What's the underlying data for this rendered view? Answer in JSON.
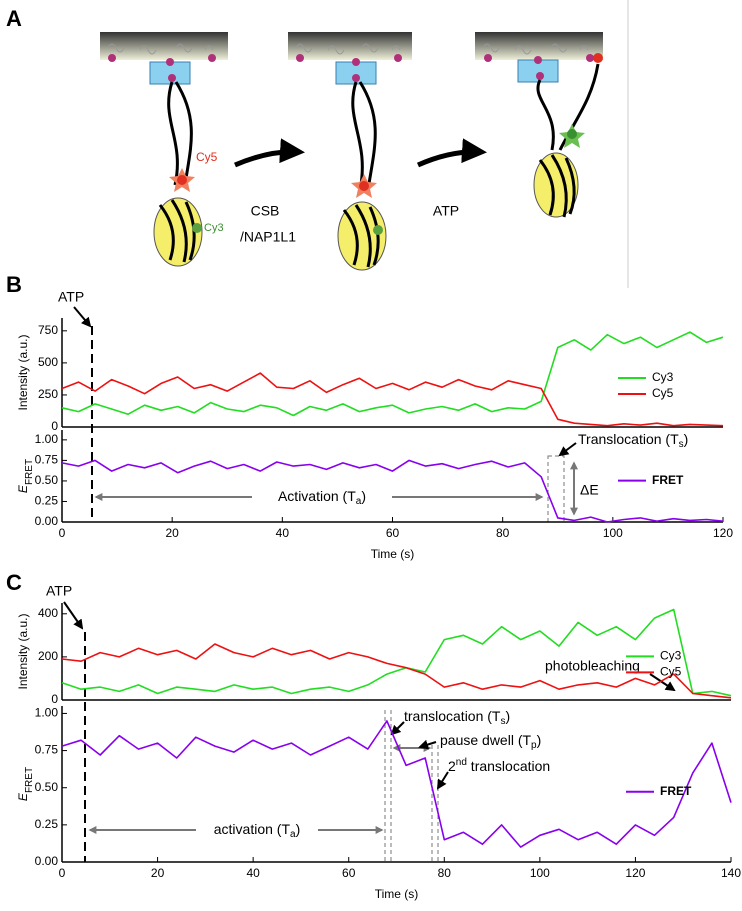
{
  "panel_labels": [
    "A",
    "B",
    "C"
  ],
  "panel_a": {
    "cy5": "Cy5",
    "cy3": "Cy3",
    "step1": [
      "CSB",
      "/NAP1L1"
    ],
    "step2": "ATP"
  },
  "annotations_b": {
    "atp": "ATP",
    "translocation": [
      "Translocation (T",
      "s",
      ")"
    ],
    "activation": [
      "Activation (T",
      "a",
      ")"
    ],
    "delta_e": "ΔE"
  },
  "annotations_c": {
    "atp": "ATP",
    "photobleaching": "photobleaching",
    "translocation": [
      "translocation (T",
      "s",
      ")"
    ],
    "pause": [
      "pause dwell (T",
      "p",
      ")"
    ],
    "second": [
      "2",
      "nd",
      " translocation"
    ],
    "activation": [
      "activation (T",
      "a",
      ")"
    ]
  },
  "chart_data": [
    {
      "type": "line",
      "ylabel": "Intensity (a.u.)",
      "legend": "right",
      "x": [
        0,
        3,
        6,
        9,
        12,
        15,
        18,
        21,
        24,
        27,
        30,
        33,
        36,
        39,
        42,
        45,
        48,
        51,
        54,
        57,
        60,
        63,
        66,
        69,
        72,
        75,
        78,
        81,
        84,
        87,
        90,
        93,
        96,
        99,
        102,
        105,
        108,
        111,
        114,
        117,
        120
      ],
      "xlim": [
        0,
        120
      ],
      "ylim": [
        0,
        850
      ],
      "yticks": [
        0,
        250,
        500,
        750
      ],
      "series": [
        {
          "name": "Cy3",
          "color": "#22dd22",
          "values": [
            150,
            120,
            180,
            140,
            100,
            170,
            130,
            160,
            110,
            190,
            140,
            120,
            170,
            150,
            90,
            160,
            130,
            180,
            120,
            150,
            170,
            110,
            140,
            160,
            130,
            180,
            120,
            150,
            140,
            200,
            620,
            680,
            600,
            720,
            650,
            700,
            620,
            680,
            740,
            660,
            700
          ]
        },
        {
          "name": "Cy5",
          "color": "#ee1111",
          "values": [
            300,
            350,
            280,
            370,
            320,
            260,
            340,
            390,
            300,
            330,
            280,
            350,
            420,
            310,
            300,
            360,
            270,
            330,
            380,
            300,
            340,
            290,
            350,
            310,
            370,
            320,
            290,
            360,
            330,
            300,
            60,
            30,
            20,
            10,
            25,
            15,
            30,
            10,
            20,
            15,
            10
          ]
        }
      ]
    },
    {
      "type": "line",
      "ylabel": [
        "E",
        "FRET"
      ],
      "xlabel": "Time (s)",
      "legend": "right",
      "x": [
        0,
        3,
        6,
        9,
        12,
        15,
        18,
        21,
        24,
        27,
        30,
        33,
        36,
        39,
        42,
        45,
        48,
        51,
        54,
        57,
        60,
        63,
        66,
        69,
        72,
        75,
        78,
        81,
        84,
        87,
        90,
        93,
        96,
        99,
        102,
        105,
        108,
        111,
        114,
        117,
        120
      ],
      "xlim": [
        0,
        120
      ],
      "xticks": [
        0,
        20,
        40,
        60,
        80,
        100,
        120
      ],
      "ylim": [
        0,
        1.12
      ],
      "yticks": [
        {
          "value": 0,
          "label": "0.00"
        },
        {
          "value": 0.25,
          "label": "0.25"
        },
        {
          "value": 0.5,
          "label": "0.50"
        },
        {
          "value": 0.75,
          "label": "0.75"
        },
        {
          "value": 1,
          "label": "1.00"
        }
      ],
      "series": [
        {
          "name": "FRET",
          "color": "#8800ee",
          "values": [
            0.72,
            0.68,
            0.75,
            0.62,
            0.7,
            0.66,
            0.72,
            0.6,
            0.68,
            0.74,
            0.65,
            0.7,
            0.62,
            0.73,
            0.68,
            0.7,
            0.64,
            0.72,
            0.66,
            0.7,
            0.62,
            0.75,
            0.68,
            0.71,
            0.65,
            0.7,
            0.74,
            0.67,
            0.72,
            0.55,
            0.05,
            0.02,
            0.06,
            0.0,
            0.03,
            0.05,
            0.01,
            0.04,
            0.02,
            0.03,
            0.01
          ]
        }
      ]
    },
    {
      "type": "line",
      "ylabel": "Intensity (a.u.)",
      "legend": "right",
      "x": [
        0,
        4,
        8,
        12,
        16,
        20,
        24,
        28,
        32,
        36,
        40,
        44,
        48,
        52,
        56,
        60,
        64,
        68,
        72,
        76,
        80,
        84,
        88,
        92,
        96,
        100,
        104,
        108,
        112,
        116,
        120,
        124,
        128,
        132,
        136,
        140
      ],
      "xlim": [
        0,
        140
      ],
      "ylim": [
        0,
        450
      ],
      "yticks": [
        0,
        200,
        400
      ],
      "series": [
        {
          "name": "Cy3",
          "color": "#22dd22",
          "values": [
            80,
            50,
            60,
            40,
            70,
            30,
            60,
            50,
            40,
            70,
            50,
            60,
            30,
            50,
            60,
            40,
            70,
            120,
            150,
            130,
            280,
            300,
            260,
            340,
            280,
            320,
            250,
            360,
            300,
            340,
            280,
            380,
            420,
            30,
            40,
            20
          ]
        },
        {
          "name": "Cy5",
          "color": "#ee1111",
          "values": [
            190,
            180,
            220,
            200,
            240,
            210,
            230,
            190,
            260,
            220,
            200,
            240,
            210,
            230,
            190,
            220,
            200,
            170,
            150,
            120,
            60,
            80,
            50,
            70,
            60,
            90,
            50,
            70,
            80,
            60,
            100,
            70,
            120,
            30,
            20,
            10
          ]
        }
      ]
    },
    {
      "type": "line",
      "ylabel": [
        "E",
        "FRET"
      ],
      "xlabel": "Time (s)",
      "legend": "right",
      "x": [
        0,
        4,
        8,
        12,
        16,
        20,
        24,
        28,
        32,
        36,
        40,
        44,
        48,
        52,
        56,
        60,
        64,
        68,
        72,
        76,
        80,
        84,
        88,
        92,
        96,
        100,
        104,
        108,
        112,
        116,
        120,
        124,
        128,
        132,
        136,
        140
      ],
      "xlim": [
        0,
        140
      ],
      "xticks": [
        0,
        20,
        40,
        60,
        80,
        100,
        120,
        140
      ],
      "ylim": [
        0,
        1.05
      ],
      "yticks": [
        {
          "value": 0,
          "label": "0.00"
        },
        {
          "value": 0.25,
          "label": "0.25"
        },
        {
          "value": 0.5,
          "label": "0.50"
        },
        {
          "value": 0.75,
          "label": "0.75"
        },
        {
          "value": 1,
          "label": "1.00"
        }
      ],
      "series": [
        {
          "name": "FRET",
          "color": "#8800ee",
          "values": [
            0.78,
            0.82,
            0.72,
            0.85,
            0.76,
            0.8,
            0.7,
            0.84,
            0.78,
            0.74,
            0.82,
            0.76,
            0.8,
            0.72,
            0.78,
            0.84,
            0.76,
            0.95,
            0.65,
            0.7,
            0.15,
            0.2,
            0.12,
            0.25,
            0.1,
            0.18,
            0.22,
            0.15,
            0.2,
            0.12,
            0.25,
            0.18,
            0.3,
            0.6,
            0.8,
            0.4
          ]
        }
      ]
    }
  ]
}
